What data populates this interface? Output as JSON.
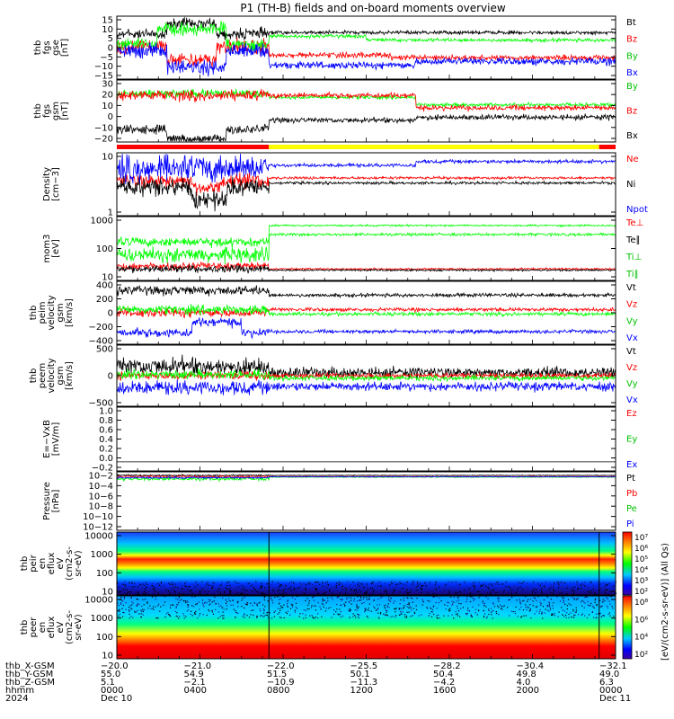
{
  "title": "P1 (TH-B) fields and on-board moments overview",
  "colors": {
    "black": "#000000",
    "red": "#ff0000",
    "green": "#00ff00",
    "blue": "#0000ff",
    "yellow": "#ffff00"
  },
  "chart_data": [
    {
      "type": "line",
      "ylabel": [
        "thb",
        "fgs",
        "gse",
        "[nT]"
      ],
      "yticks": [
        "15",
        "10",
        "5",
        "0",
        "−5",
        "−10",
        "−15"
      ],
      "series": [
        {
          "name": "Bt",
          "color": "#000000"
        },
        {
          "name": "Bz",
          "color": "#ff0000"
        },
        {
          "name": "By",
          "color": "#00ff00"
        },
        {
          "name": "Bx",
          "color": "#0000ff"
        }
      ]
    },
    {
      "type": "line",
      "ylabel": [
        "thb",
        "fgs",
        "gsm",
        "[nT]"
      ],
      "yticks": [
        "30",
        "20",
        "10",
        "0",
        "−10",
        "−20"
      ],
      "series": [
        {
          "name": "By",
          "color": "#00ff00"
        },
        {
          "name": "Bz",
          "color": "#ff0000"
        },
        {
          "name": "Bx",
          "color": "#000000"
        }
      ]
    },
    {
      "type": "line",
      "ylabel": [
        "Density",
        "[cm−3]"
      ],
      "yticks": [
        "10",
        "1"
      ],
      "series": [
        {
          "name": "Ne",
          "color": "#ff0000"
        },
        {
          "name": "Ni",
          "color": "#000000"
        },
        {
          "name": "Npot",
          "color": "#0000ff"
        }
      ]
    },
    {
      "type": "line",
      "ylabel": [
        "mom3",
        "[eV]"
      ],
      "yticks": [
        "1000",
        "100",
        "10"
      ],
      "series": [
        {
          "name": "Te⊥",
          "color": "#ff0000"
        },
        {
          "name": "Te∥",
          "color": "#000000"
        },
        {
          "name": "Ti⊥",
          "color": "#00ff00"
        },
        {
          "name": "Ti∥",
          "color": "#00ff00"
        }
      ]
    },
    {
      "type": "line",
      "ylabel": [
        "thb",
        "peim",
        "velocity",
        "gsm",
        "[km/s]"
      ],
      "yticks": [
        "400",
        "200",
        "0",
        "−200",
        "−400"
      ],
      "series": [
        {
          "name": "Vt",
          "color": "#000000"
        },
        {
          "name": "Vz",
          "color": "#ff0000"
        },
        {
          "name": "Vy",
          "color": "#00ff00"
        },
        {
          "name": "Vx",
          "color": "#0000ff"
        }
      ]
    },
    {
      "type": "line",
      "ylabel": [
        "thb",
        "peem",
        "velocity",
        "gsm",
        "[km/s]"
      ],
      "yticks": [
        "500",
        "0",
        "−500"
      ],
      "series": [
        {
          "name": "Vt",
          "color": "#000000"
        },
        {
          "name": "Vz",
          "color": "#ff0000"
        },
        {
          "name": "Vy",
          "color": "#00ff00"
        },
        {
          "name": "Vx",
          "color": "#0000ff"
        }
      ]
    },
    {
      "type": "line",
      "ylabel": [
        "E=−VxB",
        "[mV/m]"
      ],
      "yticks": [
        "1.0",
        "0.8",
        "0.6",
        "0.4",
        "0.2",
        "0.0",
        "−0.2"
      ],
      "series": [
        {
          "name": "Ez",
          "color": "#ff0000"
        },
        {
          "name": "Ey",
          "color": "#00ff00"
        },
        {
          "name": "Ex",
          "color": "#0000ff"
        }
      ]
    },
    {
      "type": "line",
      "ylabel": [
        "Pressure",
        "[nPa]"
      ],
      "yticks": [
        "10−2",
        "10−4",
        "10−6",
        "10−8",
        "10−10",
        "10−12"
      ],
      "series": [
        {
          "name": "Pt",
          "color": "#000000"
        },
        {
          "name": "Pb",
          "color": "#ff0000"
        },
        {
          "name": "Pe",
          "color": "#00ff00"
        },
        {
          "name": "Pi",
          "color": "#0000ff"
        }
      ]
    },
    {
      "type": "heatmap",
      "ylabel": [
        "thb",
        "peir",
        "en",
        "eflux",
        "eV",
        "(cm2-s-",
        "sr-eV)"
      ],
      "yticks": [
        "10000",
        "1000",
        "100",
        "10"
      ]
    },
    {
      "type": "heatmap",
      "ylabel": [
        "thb",
        "peer",
        "en",
        "eflux",
        "eV",
        "(cm2-s-",
        "sr-eV)"
      ],
      "yticks": [
        "10000",
        "1000",
        "100",
        "10"
      ]
    }
  ],
  "colorbar": {
    "label": "[eV/(cm2-s-sr-eV)] (All Qs)",
    "upper_ticks": [
      "10⁷",
      "10⁶",
      "10⁵",
      "10⁴",
      "10³",
      "10²"
    ],
    "lower_ticks": [
      "10⁸",
      "10⁶",
      "10⁴",
      "10²"
    ]
  },
  "xaxis": {
    "row_labels": [
      "thb_X-GSM",
      "thb_Y-GSM",
      "thb_Z-GSM",
      "hhmm",
      "2024"
    ],
    "columns": [
      {
        "X": "−20.0",
        "Y": "55.0",
        "Z": "5.1",
        "hhmm": "0000",
        "date": "Dec 10"
      },
      {
        "X": "−21.0",
        "Y": "54.9",
        "Z": "−2.1",
        "hhmm": "0400",
        "date": ""
      },
      {
        "X": "−22.0",
        "Y": "51.5",
        "Z": "−10.9",
        "hhmm": "0800",
        "date": ""
      },
      {
        "X": "−25.5",
        "Y": "50.1",
        "Z": "−11.3",
        "hhmm": "1200",
        "date": ""
      },
      {
        "X": "−28.2",
        "Y": "50.4",
        "Z": "−4.2",
        "hhmm": "1600",
        "date": ""
      },
      {
        "X": "−30.4",
        "Y": "49.8",
        "Z": "4.0",
        "hhmm": "2000",
        "date": ""
      },
      {
        "X": "−32.1",
        "Y": "49.0",
        "Z": "6.3",
        "hhmm": "0000",
        "date": "Dec 11"
      }
    ]
  }
}
